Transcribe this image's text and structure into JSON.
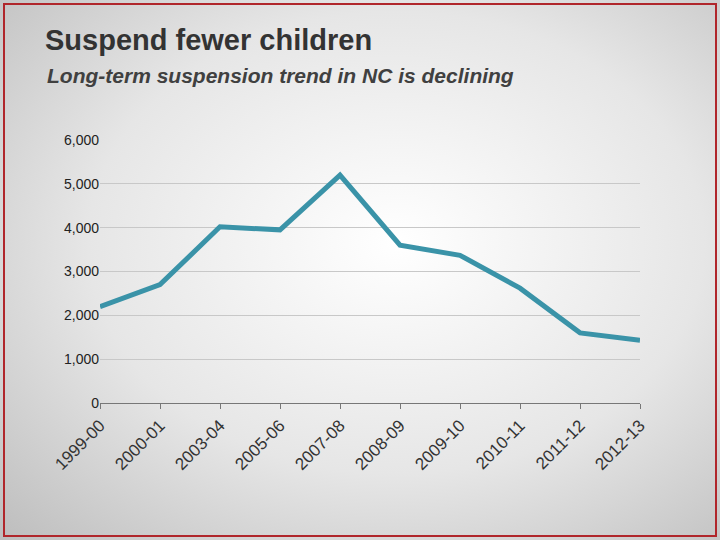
{
  "chart_data": {
    "type": "line",
    "title": "Suspend fewer children",
    "subtitle": "Long-term suspension trend in NC is declining",
    "categories": [
      "1999-00",
      "2000-01",
      "2003-04",
      "2005-06",
      "2007-08",
      "2008-09",
      "2009-10",
      "2010-11",
      "2011-12",
      "2012-13"
    ],
    "values": [
      2200,
      2700,
      4020,
      3950,
      5200,
      3600,
      3370,
      2620,
      1600,
      1430
    ],
    "color": "#3a93a8",
    "ylim": [
      0,
      6000
    ],
    "yticks": [
      0,
      {
        "value": 1000,
        "label": "1,000"
      },
      {
        "value": 2000,
        "label": "2,000"
      },
      {
        "value": 3000,
        "label": "3,000"
      },
      {
        "value": 4000,
        "label": "4,000"
      },
      {
        "value": 5000,
        "label": "5,000"
      },
      {
        "value": 6000,
        "label": "6,000"
      }
    ],
    "grid": true
  }
}
